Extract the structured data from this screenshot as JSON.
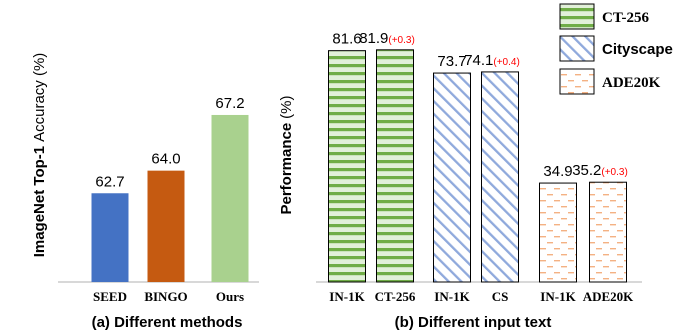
{
  "chart_data": [
    {
      "type": "bar",
      "caption": "(a) Different methods",
      "ylabel_bold": "ImageNet Top-1",
      "ylabel_plain": "Accuracy (%)",
      "categories": [
        "SEED",
        "BINGO",
        "Ours"
      ],
      "values": [
        62.7,
        64.0,
        67.2
      ],
      "value_labels": [
        "62.7",
        "64.0",
        "67.2"
      ],
      "colors": [
        "#4472c4",
        "#c55a11",
        "#a9d18e"
      ]
    },
    {
      "type": "bar",
      "caption": "(b) Different input text",
      "ylabel_bold": "Performance",
      "ylabel_plain": "(%)",
      "categories": [
        "IN-1K",
        "CT-256",
        "IN-1K",
        "CS",
        "IN-1K",
        "ADE20K"
      ],
      "values": [
        81.6,
        81.9,
        73.7,
        74.1,
        34.9,
        35.2
      ],
      "value_labels": [
        "81.6",
        "81.9",
        "73.7",
        "74.1",
        "34.9",
        "35.2"
      ],
      "gains": [
        "",
        "(+0.3)",
        "",
        "(+0.4)",
        "",
        "(+0.3)"
      ],
      "groups": [
        0,
        0,
        1,
        1,
        2,
        2
      ],
      "legend": [
        "CT-256",
        "Cityscape",
        "ADE20K"
      ],
      "legend_placement": "top-right",
      "colors": {
        "pattern_stroke": [
          "#70ad47",
          "#8fa9dc",
          "#f4b183"
        ],
        "pattern_fill": [
          "#e2f0d9",
          "#ffffff",
          "#ffffff"
        ],
        "gain": "#ff0000"
      }
    }
  ]
}
